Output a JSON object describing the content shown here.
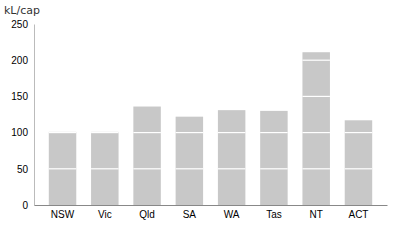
{
  "chart_data": {
    "type": "bar",
    "ylabel": "kL/cap",
    "categories": [
      "NSW",
      "Vic",
      "Qld",
      "SA",
      "WA",
      "Tas",
      "NT",
      "ACT"
    ],
    "values": [
      101,
      101,
      136,
      122,
      131,
      130,
      211,
      117
    ],
    "color": "#c8c8c8",
    "ylim": [
      0,
      250
    ],
    "yticks": [
      0,
      50,
      100,
      150,
      200,
      250
    ],
    "grid": true
  }
}
